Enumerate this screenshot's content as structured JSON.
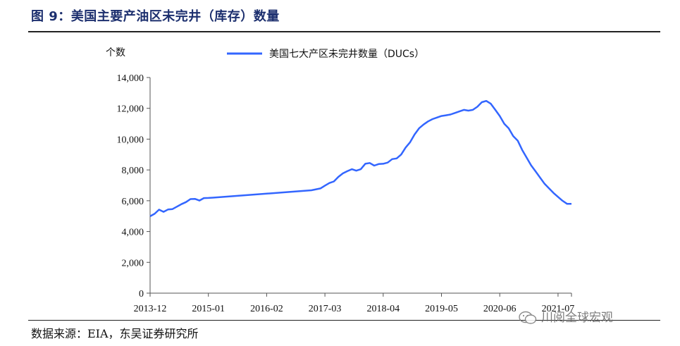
{
  "header": {
    "title": "图 9：美国主要产油区未完井（库存）数量"
  },
  "footer": {
    "source": "数据来源：EIA，东吴证券研究所",
    "watermark": "川阅全球宏观"
  },
  "chart_data": {
    "type": "line",
    "ylabel": "个数",
    "ylim": [
      0,
      14000
    ],
    "yticks": [
      0,
      2000,
      4000,
      6000,
      8000,
      10000,
      12000,
      14000
    ],
    "ytick_labels": [
      "0",
      "2,000",
      "4,000",
      "6,000",
      "8,000",
      "10,000",
      "12,000",
      "14,000"
    ],
    "xlim": [
      "2013-12",
      "2021-10"
    ],
    "xticks": [
      "2013-12",
      "2015-01",
      "2016-02",
      "2017-03",
      "2018-04",
      "2019-05",
      "2020-06",
      "2021-07"
    ],
    "legend_position": "top-center",
    "grid": false,
    "series": [
      {
        "name": "美国七大产区未完井数量（DUCs）",
        "color": "#3366ff",
        "x": [
          "2013-12",
          "2014-01",
          "2014-02",
          "2014-03",
          "2014-04",
          "2014-05",
          "2014-06",
          "2014-07",
          "2014-08",
          "2014-09",
          "2014-10",
          "2014-11",
          "2014-12",
          "2015-01",
          "2015-02",
          "2016-12",
          "2017-02",
          "2017-03",
          "2017-04",
          "2017-05",
          "2017-06",
          "2017-07",
          "2017-08",
          "2017-09",
          "2017-10",
          "2017-11",
          "2017-12",
          "2018-01",
          "2018-02",
          "2018-03",
          "2018-04",
          "2018-05",
          "2018-06",
          "2018-07",
          "2018-08",
          "2018-09",
          "2018-10",
          "2018-11",
          "2018-12",
          "2019-01",
          "2019-02",
          "2019-03",
          "2019-04",
          "2019-05",
          "2019-06",
          "2019-07",
          "2019-08",
          "2019-09",
          "2019-10",
          "2019-11",
          "2019-12",
          "2020-01",
          "2020-02",
          "2020-03",
          "2020-04",
          "2020-05",
          "2020-06",
          "2020-07",
          "2020-08",
          "2020-09",
          "2020-10",
          "2020-11",
          "2020-12",
          "2021-01",
          "2021-02",
          "2021-03",
          "2021-04",
          "2021-05",
          "2021-06",
          "2021-07",
          "2021-08",
          "2021-09",
          "2021-10"
        ],
        "values": [
          4990,
          5150,
          5420,
          5280,
          5430,
          5460,
          5620,
          5780,
          5910,
          6110,
          6120,
          6010,
          6170,
          6180,
          6200,
          6680,
          6800,
          6980,
          7150,
          7250,
          7550,
          7780,
          7920,
          8050,
          7950,
          8050,
          8400,
          8450,
          8280,
          8380,
          8400,
          8480,
          8700,
          8750,
          9000,
          9450,
          9800,
          10300,
          10700,
          10950,
          11150,
          11300,
          11400,
          11500,
          11550,
          11600,
          11700,
          11800,
          11900,
          11850,
          11900,
          12100,
          12400,
          12480,
          12300,
          11900,
          11500,
          11000,
          10700,
          10200,
          9900,
          9300,
          8800,
          8300,
          7900,
          7500,
          7100,
          6800,
          6500,
          6250,
          6000,
          5800,
          5800
        ]
      }
    ]
  }
}
